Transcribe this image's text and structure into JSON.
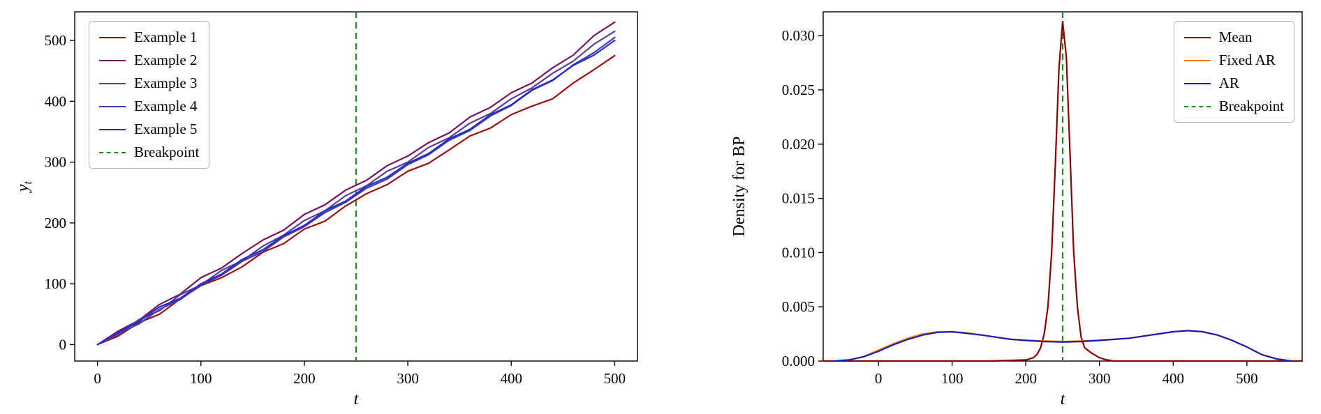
{
  "figure": {
    "background": "#ffffff"
  },
  "chart_data": [
    {
      "type": "line",
      "title": "",
      "xlabel": "t",
      "ylabel": "y_t",
      "xlim": [
        -22,
        522
      ],
      "ylim": [
        -27,
        547
      ],
      "xticks": [
        0,
        100,
        200,
        300,
        400,
        500
      ],
      "yticks": [
        0,
        100,
        200,
        300,
        400,
        500
      ],
      "ytick_decimals": 0,
      "legend_position": "top-left",
      "grid": false,
      "breakpoint": {
        "label": "Breakpoint",
        "x": 250,
        "color": "#1d8f1d",
        "dash": true
      },
      "x": [
        0,
        20,
        40,
        60,
        80,
        100,
        120,
        140,
        160,
        180,
        200,
        220,
        240,
        260,
        280,
        300,
        320,
        340,
        360,
        380,
        400,
        420,
        440,
        460,
        480,
        500
      ],
      "series": [
        {
          "name": "Example 1",
          "color": "#9a0f0f",
          "values": [
            0,
            14,
            36,
            50,
            75,
            97,
            110,
            128,
            152,
            166,
            190,
            203,
            228,
            248,
            263,
            285,
            298,
            320,
            343,
            356,
            378,
            392,
            404,
            430,
            452,
            475
          ]
        },
        {
          "name": "Example 2",
          "color": "#7a1060",
          "values": [
            0,
            22,
            40,
            66,
            83,
            110,
            126,
            150,
            172,
            188,
            214,
            230,
            254,
            270,
            294,
            310,
            332,
            348,
            374,
            390,
            414,
            430,
            455,
            476,
            508,
            530
          ]
        },
        {
          "name": "Example 3",
          "color": "#5a3f96",
          "values": [
            0,
            17,
            41,
            56,
            82,
            98,
            122,
            138,
            162,
            180,
            204,
            220,
            245,
            261,
            285,
            300,
            324,
            340,
            364,
            380,
            404,
            422,
            446,
            466,
            494,
            515
          ]
        },
        {
          "name": "Example 4",
          "color": "#4040b0",
          "values": [
            0,
            18,
            34,
            58,
            74,
            98,
            114,
            137,
            153,
            177,
            194,
            217,
            234,
            257,
            272,
            296,
            312,
            336,
            352,
            376,
            393,
            418,
            434,
            460,
            480,
            505
          ]
        },
        {
          "name": "Example 5",
          "color": "#2a2ac8",
          "values": [
            0,
            20,
            38,
            62,
            76,
            100,
            116,
            140,
            156,
            179,
            196,
            220,
            236,
            260,
            275,
            298,
            314,
            338,
            354,
            378,
            394,
            419,
            435,
            459,
            476,
            500
          ]
        }
      ]
    },
    {
      "type": "line",
      "title": "",
      "xlabel": "t",
      "ylabel": "Density for BP",
      "xlim": [
        -75,
        575
      ],
      "ylim": [
        0,
        0.0322
      ],
      "xticks": [
        0,
        100,
        200,
        300,
        400,
        500
      ],
      "yticks": [
        0,
        0.005,
        0.01,
        0.015,
        0.02,
        0.025,
        0.03
      ],
      "ytick_decimals": 3,
      "legend_position": "top-right",
      "grid": false,
      "breakpoint": {
        "label": "Breakpoint",
        "x": 250,
        "color": "#1d8f1d",
        "dash": true
      },
      "series": [
        {
          "name": "Mean",
          "color": "#8b0000",
          "x": [
            -75,
            150,
            200,
            210,
            215,
            220,
            225,
            230,
            235,
            240,
            245,
            250,
            255,
            260,
            265,
            270,
            275,
            280,
            290,
            300,
            310,
            320,
            575
          ],
          "values": [
            0,
            0,
            0.0001,
            0.0003,
            0.0006,
            0.0012,
            0.0025,
            0.005,
            0.01,
            0.018,
            0.027,
            0.0313,
            0.028,
            0.019,
            0.01,
            0.005,
            0.0022,
            0.0012,
            0.0007,
            0.0003,
            0.0001,
            0,
            0
          ]
        },
        {
          "name": "Fixed AR",
          "color": "#ff7f0e",
          "x": [
            -60,
            -40,
            -20,
            0,
            20,
            40,
            60,
            80,
            100,
            120,
            140,
            160,
            180,
            200,
            225,
            250,
            275,
            300,
            320,
            340,
            360,
            380,
            400,
            420,
            440,
            460,
            480,
            500,
            520,
            540,
            560
          ],
          "values": [
            0,
            0.0001,
            0.0004,
            0.001,
            0.0016,
            0.0021,
            0.0025,
            0.0027,
            0.0027,
            0.0026,
            0.0024,
            0.0022,
            0.002,
            0.0019,
            0.00185,
            0.0018,
            0.00185,
            0.0019,
            0.002,
            0.0021,
            0.0023,
            0.0025,
            0.0027,
            0.0028,
            0.0027,
            0.0024,
            0.0019,
            0.0013,
            0.0006,
            0.0002,
            0
          ]
        },
        {
          "name": "AR",
          "color": "#1a1ab8",
          "x": [
            -60,
            -40,
            -20,
            0,
            20,
            40,
            60,
            80,
            100,
            120,
            140,
            160,
            180,
            200,
            225,
            250,
            275,
            300,
            320,
            340,
            360,
            380,
            400,
            420,
            440,
            460,
            480,
            500,
            520,
            540,
            560
          ],
          "values": [
            0,
            0.0001,
            0.0004,
            0.0009,
            0.0015,
            0.002,
            0.0024,
            0.00265,
            0.0027,
            0.00255,
            0.0024,
            0.0022,
            0.002,
            0.0019,
            0.0018,
            0.00175,
            0.0018,
            0.0019,
            0.002,
            0.0021,
            0.0023,
            0.0025,
            0.0027,
            0.0028,
            0.0027,
            0.0024,
            0.0019,
            0.0013,
            0.0006,
            0.0002,
            0
          ]
        }
      ]
    }
  ]
}
